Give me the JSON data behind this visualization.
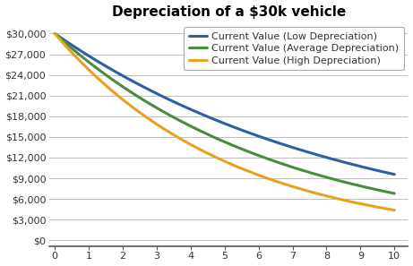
{
  "title": "Depreciation of a $30k vehicle",
  "initial_value": 30000,
  "low_rate": 0.108,
  "avg_rate": 0.138,
  "high_rate": 0.175,
  "line_colors": {
    "low": "#2E5FA3",
    "avg": "#4A8C3F",
    "high": "#E8A020"
  },
  "line_labels": {
    "low": "Current Value (Low Depreciation)",
    "avg": "Current Value (Average Depreciation)",
    "high": "Current Value (High Depreciation)"
  },
  "yticks": [
    0,
    3000,
    6000,
    9000,
    12000,
    15000,
    18000,
    21000,
    24000,
    27000,
    30000
  ],
  "ytick_labels": [
    "$0",
    "$3,000",
    "$6,000",
    "$9,000",
    "$12,000",
    "$15,000",
    "$18,000",
    "$21,000",
    "$24,000",
    "$27,000",
    "$30,000"
  ],
  "xticks": [
    0,
    1,
    2,
    3,
    4,
    5,
    6,
    7,
    8,
    9,
    10
  ],
  "xlim": [
    -0.15,
    10.4
  ],
  "ylim": [
    -800,
    31500
  ],
  "line_width": 2.2,
  "background_color": "#ffffff",
  "legend_loc": "upper right",
  "grid_color": "#c0c0c0",
  "title_fontsize": 11,
  "tick_fontsize": 8,
  "legend_fontsize": 8,
  "text_color": "#333333"
}
